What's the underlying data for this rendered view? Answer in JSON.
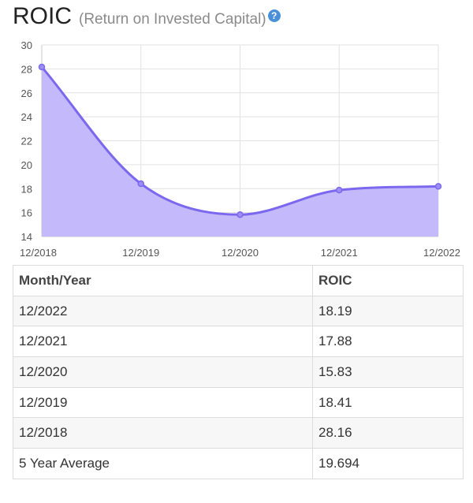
{
  "header": {
    "title": "ROIC",
    "subtitle": "(Return on Invested Capital)",
    "help_icon": "question-circle-icon",
    "help_icon_color": "#4a90d9"
  },
  "chart_data": {
    "type": "area",
    "x": [
      "12/2018",
      "12/2019",
      "12/2020",
      "12/2021",
      "12/2022"
    ],
    "series": [
      {
        "values": [
          28.16,
          18.41,
          15.83,
          17.88,
          18.19
        ],
        "color": "#7b68ee",
        "fill": "#c4b9fb"
      }
    ],
    "ylim": [
      14,
      30
    ],
    "yticks": [
      30,
      28,
      26,
      24,
      22,
      20,
      18,
      16,
      14
    ],
    "grid": true,
    "legend": "none"
  },
  "table": {
    "headers": [
      "Month/Year",
      "ROIC"
    ],
    "rows": [
      [
        "12/2022",
        "18.19"
      ],
      [
        "12/2021",
        "17.88"
      ],
      [
        "12/2020",
        "15.83"
      ],
      [
        "12/2019",
        "18.41"
      ],
      [
        "12/2018",
        "28.16"
      ],
      [
        "5 Year Average",
        "19.694"
      ]
    ]
  }
}
